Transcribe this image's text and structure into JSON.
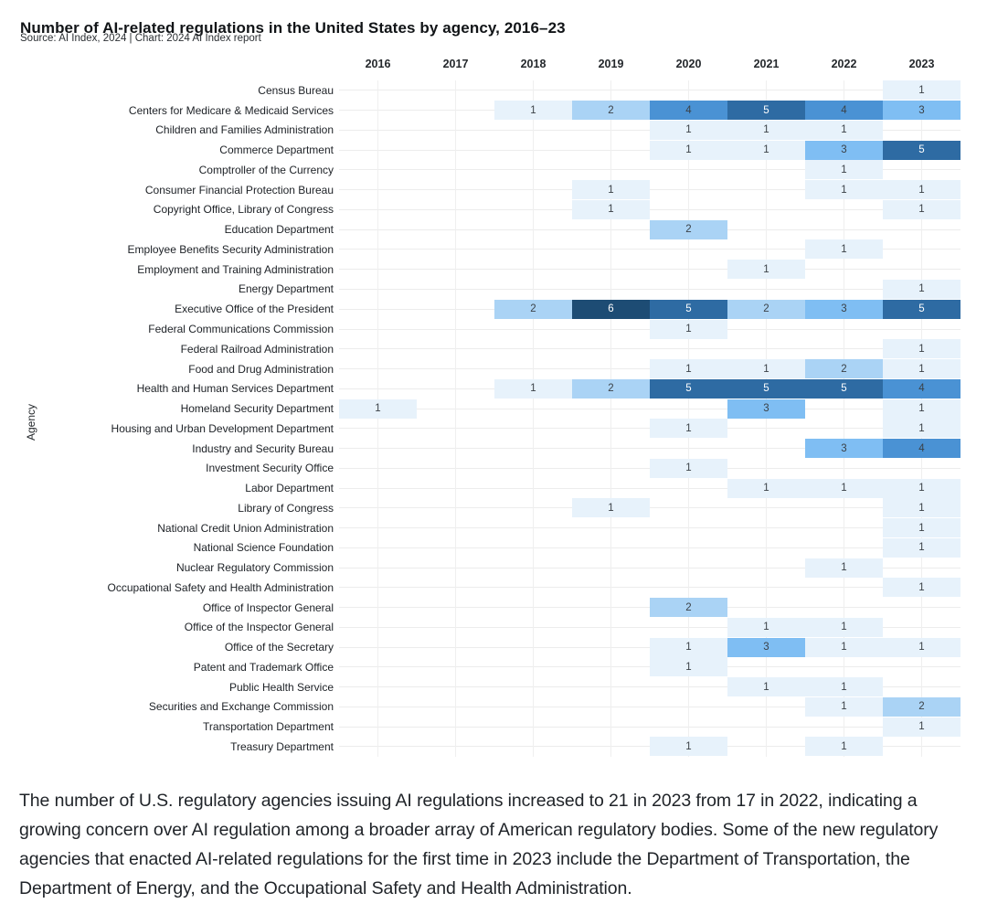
{
  "header": {
    "title": "Number of AI-related regulations in the United States by agency, 2016–23",
    "subtitle": "Source: AI Index, 2024 | Chart: 2024 AI Index report"
  },
  "chart_data": {
    "type": "heatmap",
    "title": "Number of AI-related regulations in the United States by agency, 2016–23",
    "xlabel": "",
    "ylabel": "Agency",
    "x": [
      "2016",
      "2017",
      "2018",
      "2019",
      "2020",
      "2021",
      "2022",
      "2023"
    ],
    "legend_position": "none",
    "grid": true,
    "value_range": [
      1,
      6
    ],
    "rows": [
      {
        "agency": "Census Bureau",
        "values": [
          null,
          null,
          null,
          null,
          null,
          null,
          null,
          1
        ]
      },
      {
        "agency": "Centers for Medicare & Medicaid Services",
        "values": [
          null,
          null,
          1,
          2,
          4,
          5,
          4,
          3
        ]
      },
      {
        "agency": "Children and Families Administration",
        "values": [
          null,
          null,
          null,
          null,
          1,
          1,
          1,
          null
        ]
      },
      {
        "agency": "Commerce Department",
        "values": [
          null,
          null,
          null,
          null,
          1,
          1,
          3,
          5
        ]
      },
      {
        "agency": "Comptroller of the Currency",
        "values": [
          null,
          null,
          null,
          null,
          null,
          null,
          1,
          null
        ]
      },
      {
        "agency": "Consumer Financial Protection Bureau",
        "values": [
          null,
          null,
          null,
          1,
          null,
          null,
          1,
          1
        ]
      },
      {
        "agency": "Copyright Office, Library of Congress",
        "values": [
          null,
          null,
          null,
          1,
          null,
          null,
          null,
          1
        ]
      },
      {
        "agency": "Education Department",
        "values": [
          null,
          null,
          null,
          null,
          2,
          null,
          null,
          null
        ]
      },
      {
        "agency": "Employee Benefits Security Administration",
        "values": [
          null,
          null,
          null,
          null,
          null,
          null,
          1,
          null
        ]
      },
      {
        "agency": "Employment and Training Administration",
        "values": [
          null,
          null,
          null,
          null,
          null,
          1,
          null,
          null
        ]
      },
      {
        "agency": "Energy Department",
        "values": [
          null,
          null,
          null,
          null,
          null,
          null,
          null,
          1
        ]
      },
      {
        "agency": "Executive Office of the President",
        "values": [
          null,
          null,
          2,
          6,
          5,
          2,
          3,
          5
        ]
      },
      {
        "agency": "Federal Communications Commission",
        "values": [
          null,
          null,
          null,
          null,
          1,
          null,
          null,
          null
        ]
      },
      {
        "agency": "Federal Railroad Administration",
        "values": [
          null,
          null,
          null,
          null,
          null,
          null,
          null,
          1
        ]
      },
      {
        "agency": "Food and Drug Administration",
        "values": [
          null,
          null,
          null,
          null,
          1,
          1,
          2,
          1
        ]
      },
      {
        "agency": "Health and Human Services Department",
        "values": [
          null,
          null,
          1,
          2,
          5,
          5,
          5,
          4
        ]
      },
      {
        "agency": "Homeland Security Department",
        "values": [
          1,
          null,
          null,
          null,
          null,
          3,
          null,
          1
        ]
      },
      {
        "agency": "Housing and Urban Development Department",
        "values": [
          null,
          null,
          null,
          null,
          1,
          null,
          null,
          1
        ]
      },
      {
        "agency": "Industry and Security Bureau",
        "values": [
          null,
          null,
          null,
          null,
          null,
          null,
          3,
          4
        ]
      },
      {
        "agency": "Investment Security Office",
        "values": [
          null,
          null,
          null,
          null,
          1,
          null,
          null,
          null
        ]
      },
      {
        "agency": "Labor Department",
        "values": [
          null,
          null,
          null,
          null,
          null,
          1,
          1,
          1
        ]
      },
      {
        "agency": "Library of Congress",
        "values": [
          null,
          null,
          null,
          1,
          null,
          null,
          null,
          1
        ]
      },
      {
        "agency": "National Credit Union Administration",
        "values": [
          null,
          null,
          null,
          null,
          null,
          null,
          null,
          1
        ]
      },
      {
        "agency": "National Science Foundation",
        "values": [
          null,
          null,
          null,
          null,
          null,
          null,
          null,
          1
        ]
      },
      {
        "agency": "Nuclear Regulatory Commission",
        "values": [
          null,
          null,
          null,
          null,
          null,
          null,
          1,
          null
        ]
      },
      {
        "agency": "Occupational Safety and Health Administration",
        "values": [
          null,
          null,
          null,
          null,
          null,
          null,
          null,
          1
        ]
      },
      {
        "agency": "Office of Inspector General",
        "values": [
          null,
          null,
          null,
          null,
          2,
          null,
          null,
          null
        ]
      },
      {
        "agency": "Office of the Inspector General",
        "values": [
          null,
          null,
          null,
          null,
          null,
          1,
          1,
          null
        ]
      },
      {
        "agency": "Office of the Secretary",
        "values": [
          null,
          null,
          null,
          null,
          1,
          3,
          1,
          1
        ]
      },
      {
        "agency": "Patent and Trademark Office",
        "values": [
          null,
          null,
          null,
          null,
          1,
          null,
          null,
          null
        ]
      },
      {
        "agency": "Public Health Service",
        "values": [
          null,
          null,
          null,
          null,
          null,
          1,
          1,
          null
        ]
      },
      {
        "agency": "Securities and Exchange Commission",
        "values": [
          null,
          null,
          null,
          null,
          null,
          null,
          1,
          2
        ]
      },
      {
        "agency": "Transportation Department",
        "values": [
          null,
          null,
          null,
          null,
          null,
          null,
          null,
          1
        ]
      },
      {
        "agency": "Treasury Department",
        "values": [
          null,
          null,
          null,
          null,
          1,
          null,
          1,
          null
        ]
      }
    ],
    "color_scale": {
      "1": "#e7f2fb",
      "2": "#aad3f5",
      "3": "#7fbef3",
      "4": "#4a92d4",
      "5": "#2e6ba3",
      "6": "#1d4c74"
    },
    "cell_text_dark": "#3b4147",
    "cell_text_light": "#ffffff",
    "white_text_min_value": 5
  },
  "caption": {
    "text": "The number of U.S. regulatory agencies issuing AI regulations increased to 21 in 2023 from 17 in 2022, indicating a growing concern over AI regulation among a broader array of American regulatory bodies. Some of the new regulatory agencies that enacted AI-related regulations for the first time in 2023 include the Department of Transportation, the Department of Energy, and the Occupational Safety and Health Administration."
  }
}
